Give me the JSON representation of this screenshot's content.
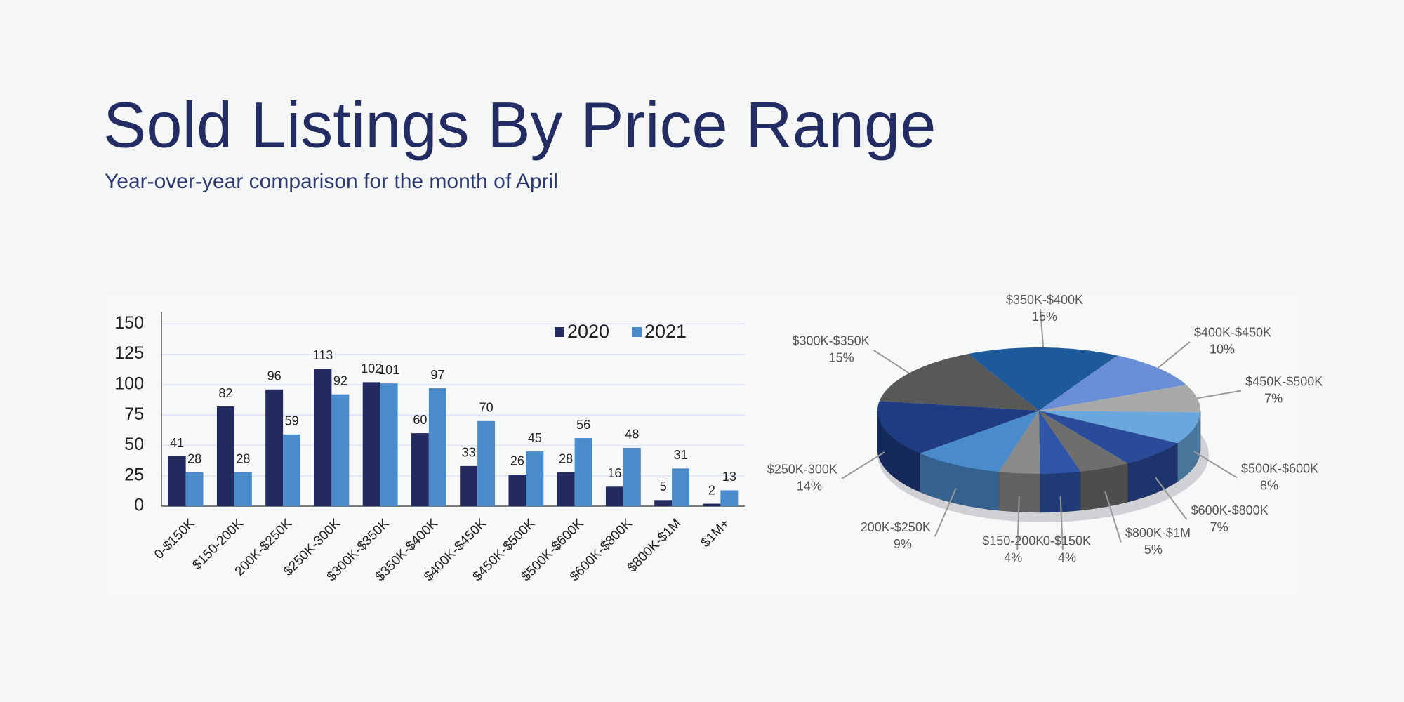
{
  "header": {
    "title": "Sold Listings By Price Range",
    "subtitle": "Year-over-year comparison for the month of April"
  },
  "chart_data": [
    {
      "type": "bar",
      "categories": [
        "0-$150K",
        "$150-200K",
        "200K-$250K",
        "$250K-300K",
        "$300K-$350K",
        "$350K-$400K",
        "$400K-$450K",
        "$450K-$500K",
        "$500K-$600K",
        "$600K-$800K",
        "$800K-$1M",
        "$1M+"
      ],
      "series": [
        {
          "name": "2020",
          "color": "#232a5f",
          "values": [
            41,
            82,
            96,
            113,
            102,
            60,
            33,
            26,
            28,
            16,
            5,
            2
          ]
        },
        {
          "name": "2021",
          "color": "#4a8bcb",
          "values": [
            28,
            28,
            59,
            92,
            101,
            97,
            70,
            45,
            56,
            48,
            31,
            13
          ]
        }
      ],
      "ylim": [
        0,
        160
      ],
      "yticks": [
        0,
        25,
        50,
        75,
        100,
        125,
        150
      ],
      "grid": true,
      "legend": "upper right"
    },
    {
      "type": "pie",
      "categories": [
        "0-$150K",
        "$150-200K",
        "200K-$250K",
        "$250K-300K",
        "$300K-$350K",
        "$350K-$400K",
        "$400K-$450K",
        "$450K-$500K",
        "$500K-$600K",
        "$600K-$800K",
        "$800K-$1M"
      ],
      "values": [
        4,
        4,
        9,
        14,
        15,
        15,
        10,
        7,
        8,
        7,
        5
      ],
      "value_labels": [
        "4%",
        "4%",
        "9%",
        "14%",
        "15%",
        "15%",
        "10%",
        "7%",
        "8%",
        "7%",
        "5%"
      ],
      "colors": [
        "#2e55a8",
        "#8a8a8a",
        "#4a8bcb",
        "#1f3b82",
        "#585858",
        "#1e5a99",
        "#6a8fd6",
        "#a9a9a9",
        "#6aa7dd",
        "#2a4b9a",
        "#6e6e6e"
      ]
    }
  ]
}
